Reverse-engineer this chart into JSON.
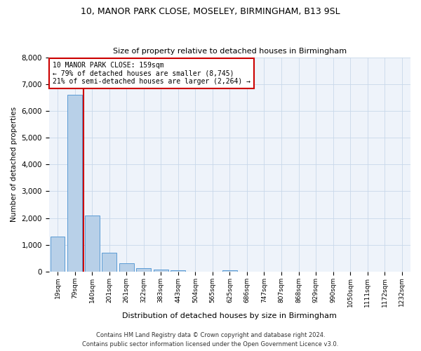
{
  "title1": "10, MANOR PARK CLOSE, MOSELEY, BIRMINGHAM, B13 9SL",
  "title2": "Size of property relative to detached houses in Birmingham",
  "xlabel": "Distribution of detached houses by size in Birmingham",
  "ylabel": "Number of detached properties",
  "footer1": "Contains HM Land Registry data © Crown copyright and database right 2024.",
  "footer2": "Contains public sector information licensed under the Open Government Licence v3.0.",
  "property_label": "10 MANOR PARK CLOSE: 159sqm",
  "annotation_line1": "← 79% of detached houses are smaller (8,745)",
  "annotation_line2": "21% of semi-detached houses are larger (2,264) →",
  "bar_color": "#b8d0e8",
  "bar_edge_color": "#5b9bd5",
  "vline_color": "#cc0000",
  "annotation_box_color": "#cc0000",
  "bg_color": "#eef3fa",
  "grid_color": "#c8d8ea",
  "categories": [
    "19sqm",
    "79sqm",
    "140sqm",
    "201sqm",
    "261sqm",
    "322sqm",
    "383sqm",
    "443sqm",
    "504sqm",
    "565sqm",
    "625sqm",
    "686sqm",
    "747sqm",
    "807sqm",
    "868sqm",
    "929sqm",
    "990sqm",
    "1050sqm",
    "1111sqm",
    "1172sqm",
    "1232sqm"
  ],
  "values": [
    1300,
    6600,
    2100,
    700,
    300,
    130,
    80,
    55,
    0,
    0,
    60,
    0,
    0,
    0,
    0,
    0,
    0,
    0,
    0,
    0,
    0
  ],
  "ylim": [
    0,
    8000
  ],
  "yticks": [
    0,
    1000,
    2000,
    3000,
    4000,
    5000,
    6000,
    7000,
    8000
  ],
  "vline_x_index": 1.5
}
